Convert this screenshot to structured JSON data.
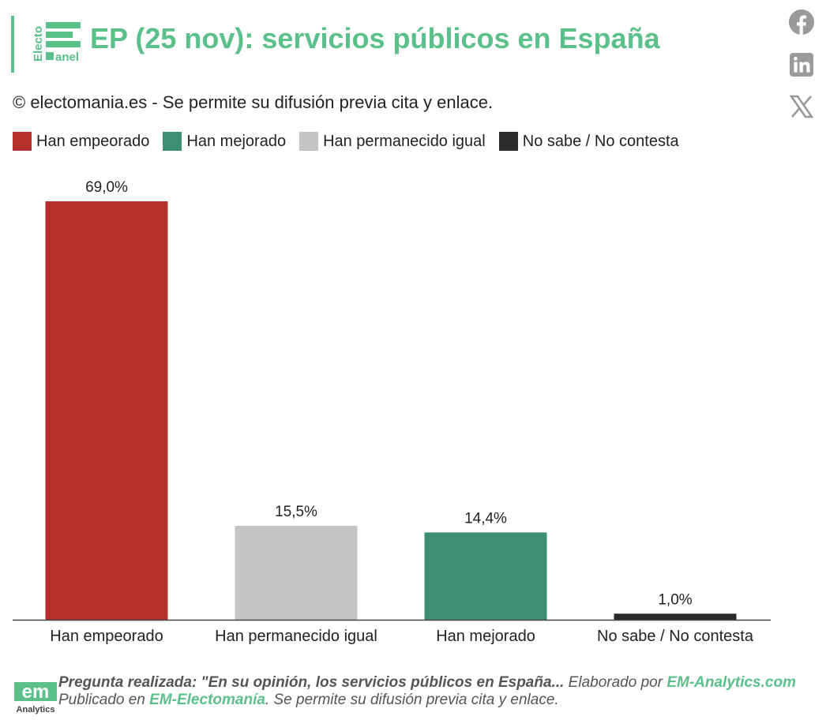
{
  "header": {
    "logo_text_top": "Electo",
    "logo_text_bottom": "anel",
    "title": "EP (25 nov): servicios públicos en España"
  },
  "share": {
    "facebook_icon": "facebook-icon",
    "linkedin_icon": "linkedin-icon",
    "x_icon": "x-icon"
  },
  "copyright": "© electomania.es - Se permite su difusión previa cita y enlace.",
  "legend": [
    {
      "label": "Han empeorado",
      "color": "#b5302a"
    },
    {
      "label": "Han mejorado",
      "color": "#3e8e75"
    },
    {
      "label": "Han permanecido igual",
      "color": "#c4c4c4"
    },
    {
      "label": "No sabe / No contesta",
      "color": "#2b2b2b"
    }
  ],
  "chart_data": {
    "type": "bar",
    "title": "EP (25 nov): servicios públicos en España",
    "categories": [
      "Han empeorado",
      "Han permanecido igual",
      "Han mejorado",
      "No sabe / No contesta"
    ],
    "values": [
      69.0,
      15.5,
      14.4,
      1.0
    ],
    "value_labels": [
      "69,0%",
      "15,5%",
      "14,4%",
      "1,0%"
    ],
    "colors": [
      "#b5302a",
      "#c4c4c4",
      "#3e8e75",
      "#2b2b2b"
    ],
    "xlabel": "",
    "ylabel": "",
    "ylim": [
      0,
      69.0
    ],
    "grid": false,
    "legend": "top-left"
  },
  "footer": {
    "logo_text": "em",
    "logo_sub": "Analytics",
    "question_label": "Pregunta realizada: \"En su opinión, los servicios públicos en España...",
    "prepared_by": " Elaborado por ",
    "prepared_link": "EM-Analytics.com",
    "published_in": "Publicado en ",
    "published_link": "EM-Electomanía",
    "published_tail": ". Se permite su difusión previa cita y enlace."
  }
}
